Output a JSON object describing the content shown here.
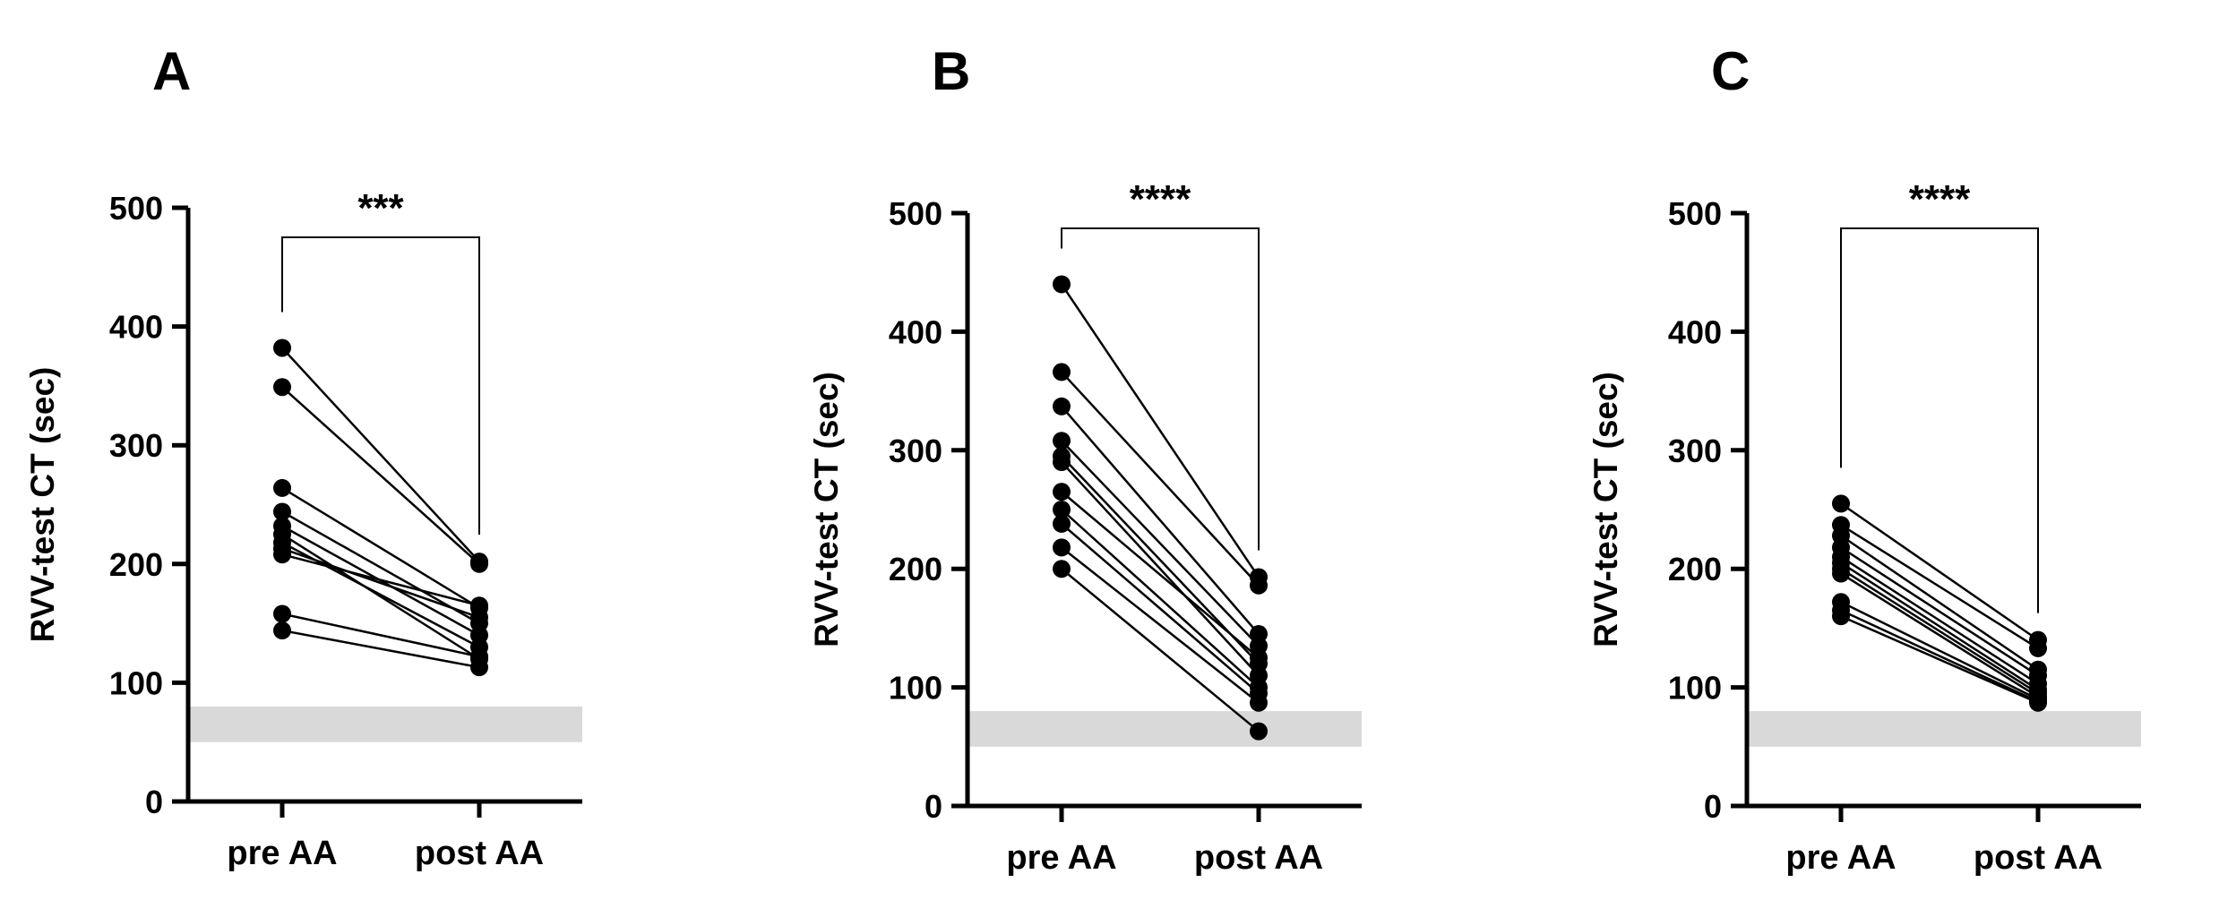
{
  "figure": {
    "panels": [
      {
        "letter": "A",
        "ylabel": "RVV-test CT (sec)",
        "significance": "***"
      },
      {
        "letter": "B",
        "ylabel": "RVV-test CT (sec)",
        "significance": "****"
      },
      {
        "letter": "C",
        "ylabel": "RVV-test CT (sec)",
        "significance": "****"
      }
    ]
  },
  "colors": {
    "line": "#000000",
    "point": "#000000",
    "reference_band": "#d9d9d9"
  },
  "chart_data": [
    {
      "type": "line",
      "title": "A",
      "xlabel": "",
      "ylabel": "RVV-test CT (sec)",
      "categories": [
        "pre AA",
        "post AA"
      ],
      "ylim": [
        0,
        500
      ],
      "yticks": [
        0,
        100,
        200,
        300,
        400,
        500
      ],
      "reference_band": [
        50,
        80
      ],
      "significance": "***",
      "grid": false,
      "series": [
        {
          "values": [
            382,
            202
          ]
        },
        {
          "values": [
            349,
            200
          ]
        },
        {
          "values": [
            264,
            163
          ]
        },
        {
          "values": [
            244,
            150
          ]
        },
        {
          "values": [
            232,
            140
          ]
        },
        {
          "values": [
            225,
            120
          ]
        },
        {
          "values": [
            218,
            130
          ]
        },
        {
          "values": [
            213,
            155
          ]
        },
        {
          "values": [
            208,
            165
          ]
        },
        {
          "values": [
            158,
            122
          ]
        },
        {
          "values": [
            144,
            113
          ]
        }
      ]
    },
    {
      "type": "line",
      "title": "B",
      "xlabel": "",
      "ylabel": "RVV-test CT (sec)",
      "categories": [
        "pre AA",
        "post AA"
      ],
      "ylim": [
        0,
        500
      ],
      "yticks": [
        0,
        100,
        200,
        300,
        400,
        500
      ],
      "reference_band": [
        50,
        80
      ],
      "significance": "****",
      "grid": false,
      "series": [
        {
          "values": [
            440,
            193
          ]
        },
        {
          "values": [
            366,
            186
          ]
        },
        {
          "values": [
            337,
            145
          ]
        },
        {
          "values": [
            308,
            135
          ]
        },
        {
          "values": [
            295,
            120
          ]
        },
        {
          "values": [
            290,
            110
          ]
        },
        {
          "values": [
            265,
            125
          ]
        },
        {
          "values": [
            250,
            100
          ]
        },
        {
          "values": [
            238,
            95
          ]
        },
        {
          "values": [
            218,
            87
          ]
        },
        {
          "values": [
            200,
            63
          ]
        }
      ]
    },
    {
      "type": "line",
      "title": "C",
      "xlabel": "",
      "ylabel": "RVV-test CT (sec)",
      "categories": [
        "pre AA",
        "post AA"
      ],
      "ylim": [
        0,
        500
      ],
      "yticks": [
        0,
        100,
        200,
        300,
        400,
        500
      ],
      "reference_band": [
        50,
        80
      ],
      "significance": "****",
      "grid": false,
      "series": [
        {
          "values": [
            255,
            140
          ]
        },
        {
          "values": [
            237,
            133
          ]
        },
        {
          "values": [
            228,
            115
          ]
        },
        {
          "values": [
            218,
            110
          ]
        },
        {
          "values": [
            210,
            103
          ]
        },
        {
          "values": [
            205,
            98
          ]
        },
        {
          "values": [
            200,
            95
          ]
        },
        {
          "values": [
            196,
            92
          ]
        },
        {
          "values": [
            172,
            90
          ]
        },
        {
          "values": [
            165,
            88
          ]
        },
        {
          "values": [
            160,
            87
          ]
        }
      ]
    }
  ]
}
